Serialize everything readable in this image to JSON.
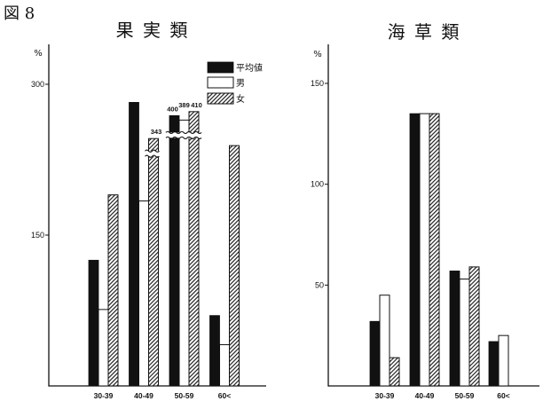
{
  "figure_label": "図 8",
  "chart_data": [
    {
      "type": "bar",
      "title": "果 実 類",
      "ylabel": "%",
      "categories": [
        "30-39",
        "40-49",
        "50-59",
        "60<"
      ],
      "ylim": [
        0,
        340
      ],
      "yticks": [
        150,
        300
      ],
      "axis_break": true,
      "legend": "top-right",
      "series": [
        {
          "name": "平均値",
          "color": "#000000",
          "values": [
            125,
            282,
            400,
            70
          ]
        },
        {
          "name": "男",
          "color": "#ffffff",
          "values": [
            76,
            184,
            389,
            41
          ]
        },
        {
          "name": "女",
          "color": "#ffffff",
          "pattern": "diagonal-hatch",
          "values": [
            190,
            343,
            410,
            239
          ]
        }
      ]
    },
    {
      "type": "bar",
      "title": "海 草 類",
      "ylabel": "%",
      "categories": [
        "30-39",
        "40-49",
        "50-59",
        "60<"
      ],
      "ylim": [
        0,
        170
      ],
      "yticks": [
        50,
        100,
        150
      ],
      "series": [
        {
          "color": "#000000",
          "values": [
            32,
            135,
            57,
            22
          ]
        },
        {
          "color": "#ffffff",
          "values": [
            45,
            135,
            53,
            25
          ]
        },
        {
          "color": "#ffffff",
          "pattern": "diagonal-hatch",
          "values": [
            14,
            135,
            59,
            null
          ]
        }
      ]
    }
  ]
}
